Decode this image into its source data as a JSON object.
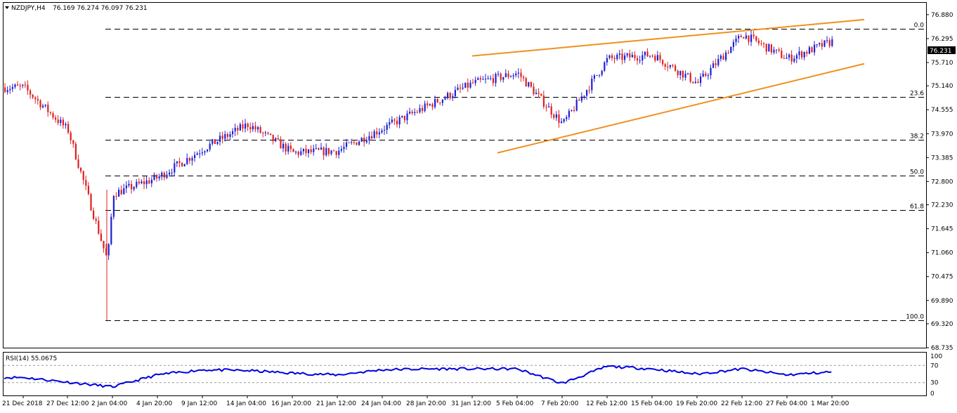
{
  "header": {
    "symbol_timeframe": "NZDJPY,H4",
    "ohlc": "76.169 76.274 76.097 76.231"
  },
  "price_panel": {
    "y_ticks": [
      "76.880",
      "76.295",
      "75.710",
      "75.140",
      "74.555",
      "73.970",
      "73.385",
      "72.800",
      "72.230",
      "71.645",
      "71.060",
      "70.475",
      "69.890",
      "69.320",
      "68.735"
    ],
    "current_price": "76.231",
    "fib_levels": [
      {
        "label": "0.0",
        "price": 76.53
      },
      {
        "label": "23.6",
        "price": 74.86
      },
      {
        "label": "38.2",
        "price": 73.82
      },
      {
        "label": "50.0",
        "price": 72.95
      },
      {
        "label": "61.8",
        "price": 72.11
      },
      {
        "label": "100.0",
        "price": 69.41
      }
    ],
    "trendlines": [
      {
        "name": "upper",
        "from": {
          "x": "31 Jan 12:00",
          "y": 75.87
        },
        "to": {
          "x": "4 Mar",
          "y": 76.76
        }
      },
      {
        "name": "lower",
        "from": {
          "x": "7 Feb 04:00",
          "y": 73.5
        },
        "to": {
          "x": "4 Mar",
          "y": 75.68
        }
      }
    ],
    "colors": {
      "bull": "#1f1fd6",
      "bear": "#e01f1f",
      "trendline": "#f0901e",
      "grid": "#000000"
    }
  },
  "rsi_panel": {
    "label": "RSI(14) 55.0675",
    "levels": [
      "70",
      "30"
    ],
    "ticks": [
      "100",
      "70",
      "30",
      "0"
    ],
    "color": "#0000e0"
  },
  "x_axis": {
    "labels": [
      "21 Dec 2018",
      "27 Dec 12:00",
      "2 Jan 04:00",
      "4 Jan 20:00",
      "9 Jan 12:00",
      "14 Jan 04:00",
      "16 Jan 20:00",
      "21 Jan 12:00",
      "24 Jan 04:00",
      "28 Jan 20:00",
      "31 Jan 12:00",
      "5 Feb 04:00",
      "7 Feb 20:00",
      "12 Feb 12:00",
      "15 Feb 04:00",
      "19 Feb 20:00",
      "22 Feb 12:00",
      "27 Feb 04:00",
      "1 Mar 20:00"
    ]
  },
  "chart_data": {
    "type": "candlestick",
    "symbol": "NZDJPY",
    "timeframe": "H4",
    "ylim": [
      68.735,
      77.17
    ],
    "close_path": [
      {
        "x": "21 Dec 2018",
        "y": 75.1
      },
      {
        "x": "27 Dec 12:00",
        "y": 74.05
      },
      {
        "x": "2 Jan 04:00",
        "y": 72.5
      },
      {
        "x": "3 Jan",
        "y": 70.85
      },
      {
        "x": "4 Jan 20:00",
        "y": 72.9
      },
      {
        "x": "9 Jan 12:00",
        "y": 73.6
      },
      {
        "x": "14 Jan 04:00",
        "y": 74.2
      },
      {
        "x": "16 Jan 20:00",
        "y": 73.5
      },
      {
        "x": "21 Jan 12:00",
        "y": 73.55
      },
      {
        "x": "24 Jan 04:00",
        "y": 74.1
      },
      {
        "x": "28 Jan 20:00",
        "y": 74.65
      },
      {
        "x": "31 Jan 12:00",
        "y": 75.2
      },
      {
        "x": "5 Feb 04:00",
        "y": 75.45
      },
      {
        "x": "7 Feb 20:00",
        "y": 74.2
      },
      {
        "x": "12 Feb 12:00",
        "y": 75.8
      },
      {
        "x": "15 Feb 04:00",
        "y": 75.9
      },
      {
        "x": "19 Feb 20:00",
        "y": 75.2
      },
      {
        "x": "22 Feb 12:00",
        "y": 76.4
      },
      {
        "x": "27 Feb 04:00",
        "y": 75.8
      },
      {
        "x": "1 Mar 20:00",
        "y": 76.23
      }
    ],
    "rsi_path": [
      {
        "x": "21 Dec 2018",
        "y": 42
      },
      {
        "x": "2 Jan 04:00",
        "y": 20
      },
      {
        "x": "4 Jan 20:00",
        "y": 48
      },
      {
        "x": "9 Jan 12:00",
        "y": 60
      },
      {
        "x": "14 Jan 04:00",
        "y": 58
      },
      {
        "x": "16 Jan 20:00",
        "y": 52
      },
      {
        "x": "21 Jan 12:00",
        "y": 48
      },
      {
        "x": "24 Jan 04:00",
        "y": 60
      },
      {
        "x": "28 Jan 20:00",
        "y": 62
      },
      {
        "x": "31 Jan 12:00",
        "y": 62
      },
      {
        "x": "5 Feb 04:00",
        "y": 62
      },
      {
        "x": "7 Feb 20:00",
        "y": 28
      },
      {
        "x": "12 Feb 12:00",
        "y": 68
      },
      {
        "x": "15 Feb 04:00",
        "y": 62
      },
      {
        "x": "19 Feb 20:00",
        "y": 50
      },
      {
        "x": "22 Feb 12:00",
        "y": 62
      },
      {
        "x": "27 Feb 04:00",
        "y": 48
      },
      {
        "x": "1 Mar 20:00",
        "y": 55.07
      }
    ],
    "rsi_ylim": [
      0,
      100
    ]
  }
}
